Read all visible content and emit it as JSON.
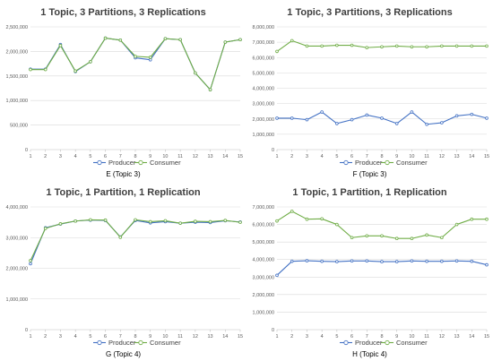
{
  "colors": {
    "producer": "#4472C4",
    "consumer": "#70AD47",
    "grid": "#d9d9d9",
    "axis": "#bfbfbf"
  },
  "chart_data": [
    {
      "type": "line",
      "title": "1 Topic, 3 Partitions, 3 Replications",
      "caption": "E (Topic 3)",
      "ylim": [
        0,
        2500000
      ],
      "yticks": [
        "0",
        "500,000",
        "1,000,000",
        "1,500,000",
        "2,000,000",
        "2,500,000"
      ],
      "categories": [
        "1",
        "2",
        "3",
        "4",
        "5",
        "6",
        "7",
        "8",
        "9",
        "10",
        "11",
        "12",
        "13",
        "14",
        "15"
      ],
      "legend_position": "bottom",
      "series": [
        {
          "name": "Producer",
          "values": [
            1640000,
            1640000,
            2140000,
            1590000,
            1790000,
            2270000,
            2230000,
            1870000,
            1830000,
            2260000,
            2240000,
            1560000,
            1220000,
            2190000,
            2240000
          ]
        },
        {
          "name": "Consumer",
          "values": [
            1630000,
            1630000,
            2120000,
            1600000,
            1790000,
            2270000,
            2230000,
            1900000,
            1880000,
            2260000,
            2240000,
            1560000,
            1220000,
            2190000,
            2240000
          ]
        }
      ]
    },
    {
      "type": "line",
      "title": "1 Topic, 3 Partitions, 3 Replications",
      "caption": "F (Topic 3)",
      "ylim": [
        0,
        8000000
      ],
      "yticks": [
        "0",
        "1,000,000",
        "2,000,000",
        "3,000,000",
        "4,000,000",
        "5,000,000",
        "6,000,000",
        "7,000,000",
        "8,000,000"
      ],
      "categories": [
        "1",
        "2",
        "3",
        "4",
        "5",
        "6",
        "7",
        "8",
        "9",
        "10",
        "11",
        "12",
        "13",
        "14",
        "15"
      ],
      "legend_position": "bottom",
      "series": [
        {
          "name": "Producer",
          "values": [
            2050000,
            2050000,
            1950000,
            2450000,
            1700000,
            1950000,
            2250000,
            2050000,
            1700000,
            2450000,
            1650000,
            1750000,
            2200000,
            2300000,
            2050000
          ]
        },
        {
          "name": "Consumer",
          "values": [
            6400000,
            7100000,
            6750000,
            6750000,
            6800000,
            6800000,
            6650000,
            6700000,
            6750000,
            6700000,
            6700000,
            6750000,
            6750000,
            6750000,
            6750000
          ]
        }
      ]
    },
    {
      "type": "line",
      "title": "1 Topic, 1 Partition, 1 Replication",
      "caption": "G (Topic 4)",
      "ylim": [
        0,
        4000000
      ],
      "yticks": [
        "0",
        "1,000,000",
        "2,000,000",
        "3,000,000",
        "4,000,000"
      ],
      "categories": [
        "1",
        "2",
        "3",
        "4",
        "5",
        "6",
        "7",
        "8",
        "9",
        "10",
        "11",
        "12",
        "13",
        "14",
        "15"
      ],
      "legend_position": "bottom",
      "series": [
        {
          "name": "Producer",
          "values": [
            2150000,
            3320000,
            3440000,
            3540000,
            3570000,
            3560000,
            3020000,
            3560000,
            3480000,
            3520000,
            3470000,
            3500000,
            3490000,
            3550000,
            3510000
          ]
        },
        {
          "name": "Consumer",
          "values": [
            2250000,
            3300000,
            3450000,
            3540000,
            3580000,
            3570000,
            3010000,
            3580000,
            3520000,
            3550000,
            3470000,
            3530000,
            3520000,
            3560000,
            3500000
          ]
        }
      ]
    },
    {
      "type": "line",
      "title": "1 Topic, 1 Partition, 1 Replication",
      "caption": "H (Topic 4)",
      "ylim": [
        0,
        7000000
      ],
      "yticks": [
        "0",
        "1,000,000",
        "2,000,000",
        "3,000,000",
        "4,000,000",
        "5,000,000",
        "6,000,000",
        "7,000,000"
      ],
      "categories": [
        "1",
        "2",
        "3",
        "4",
        "5",
        "6",
        "7",
        "8",
        "9",
        "10",
        "11",
        "12",
        "13",
        "14",
        "15"
      ],
      "legend_position": "bottom",
      "series": [
        {
          "name": "Producer",
          "values": [
            3100000,
            3900000,
            3930000,
            3900000,
            3880000,
            3920000,
            3920000,
            3880000,
            3880000,
            3920000,
            3900000,
            3900000,
            3920000,
            3900000,
            3700000
          ]
        },
        {
          "name": "Consumer",
          "values": [
            6200000,
            6750000,
            6300000,
            6320000,
            6000000,
            5250000,
            5350000,
            5350000,
            5200000,
            5200000,
            5400000,
            5250000,
            6000000,
            6300000,
            6300000
          ]
        }
      ]
    }
  ]
}
